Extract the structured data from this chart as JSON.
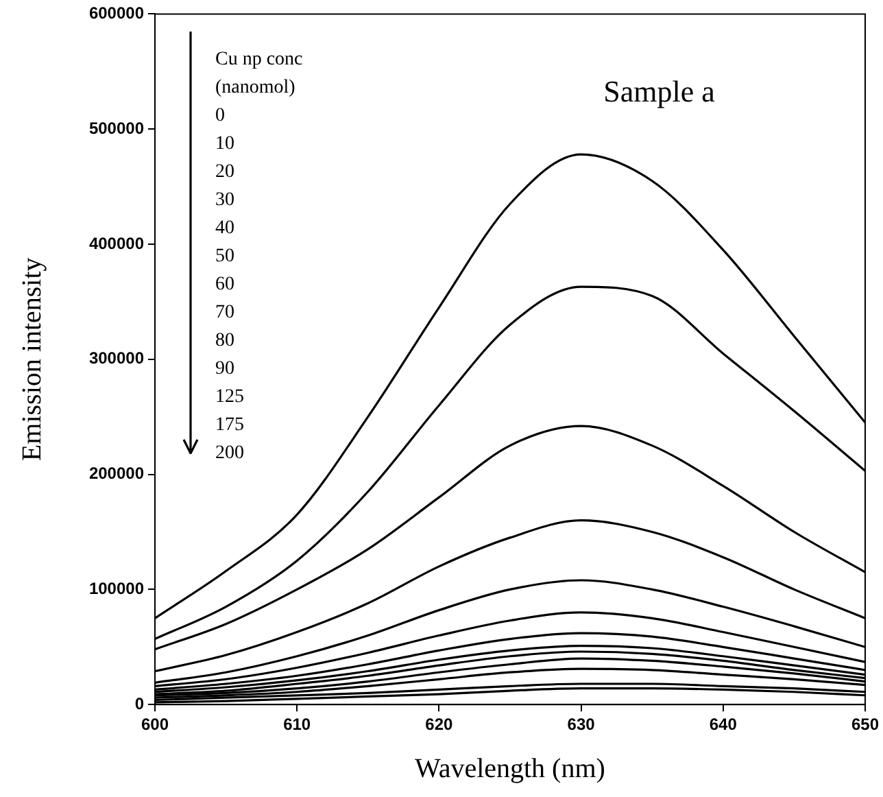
{
  "chart_data": {
    "type": "line",
    "xlabel": "Wavelength (nm)",
    "ylabel": "Emission intensity",
    "annotations": [
      "Cu np conc (nanomol)",
      "0",
      "10",
      "20",
      "30",
      "40",
      "50",
      "60",
      "70",
      "80",
      "90",
      "125",
      "175",
      "200",
      "Sample a"
    ],
    "grid": false,
    "marker": "none",
    "line_style": "solid",
    "x": [
      600,
      605,
      610,
      615,
      620,
      625,
      630,
      635,
      640,
      645,
      650
    ],
    "xlim": [
      600,
      650
    ],
    "xticks": [
      600,
      610,
      620,
      630,
      640,
      650
    ],
    "ylim": [
      0,
      600000
    ],
    "yticks": [
      0,
      100000,
      200000,
      300000,
      400000,
      500000,
      600000
    ],
    "series": [
      {
        "color": "#000000",
        "values": [
          75000,
          116000,
          165000,
          250000,
          345000,
          435000,
          478000,
          455000,
          395000,
          320000,
          245000
        ]
      },
      {
        "color": "#000000",
        "values": [
          57000,
          85000,
          125000,
          185000,
          260000,
          330000,
          363000,
          355000,
          305000,
          255000,
          203000
        ]
      },
      {
        "color": "#000000",
        "values": [
          48000,
          70000,
          100000,
          135000,
          180000,
          225000,
          242000,
          225000,
          190000,
          150000,
          115000
        ]
      },
      {
        "color": "#000000",
        "values": [
          29000,
          43000,
          63000,
          88000,
          120000,
          145000,
          160000,
          150000,
          128000,
          100000,
          75000
        ]
      },
      {
        "color": "#000000",
        "values": [
          19000,
          28000,
          42000,
          60000,
          82000,
          100000,
          108000,
          100000,
          85000,
          68000,
          50000
        ]
      },
      {
        "color": "#000000",
        "values": [
          16000,
          22000,
          32000,
          45000,
          60000,
          73000,
          80000,
          75000,
          63000,
          50000,
          37000
        ]
      },
      {
        "color": "#000000",
        "values": [
          13000,
          18000,
          25000,
          35000,
          47000,
          57000,
          62000,
          59000,
          50000,
          40000,
          30000
        ]
      },
      {
        "color": "#000000",
        "values": [
          11000,
          15000,
          21000,
          29000,
          39000,
          47000,
          51000,
          49000,
          42000,
          34000,
          26000
        ]
      },
      {
        "color": "#000000",
        "values": [
          9000,
          12000,
          18000,
          25000,
          34000,
          42000,
          46000,
          44000,
          38000,
          30000,
          23000
        ]
      },
      {
        "color": "#000000",
        "values": [
          8000,
          10000,
          14000,
          20000,
          28000,
          35000,
          40000,
          38000,
          33000,
          27000,
          20000
        ]
      },
      {
        "color": "#000000",
        "values": [
          6000,
          8000,
          11000,
          16000,
          22000,
          28000,
          31000,
          30000,
          26000,
          22000,
          17000
        ]
      },
      {
        "color": "#000000",
        "values": [
          4000,
          6000,
          8000,
          10000,
          13000,
          16000,
          18000,
          18000,
          16000,
          14000,
          11000
        ]
      },
      {
        "color": "#000000",
        "values": [
          2000,
          3000,
          5000,
          7000,
          9000,
          12000,
          14000,
          14000,
          13000,
          11000,
          8000
        ]
      }
    ]
  }
}
